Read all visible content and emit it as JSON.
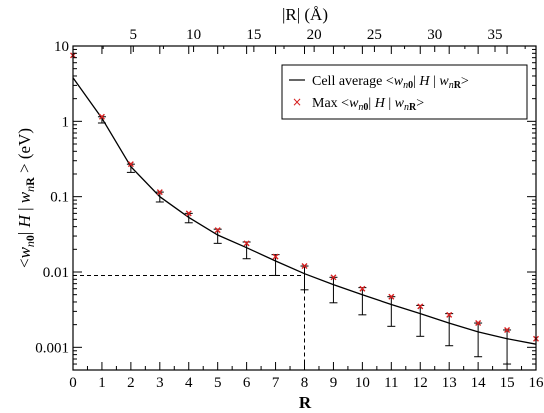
{
  "chart_data": {
    "type": "line",
    "title": "",
    "xlabel": "R",
    "top_xlabel": "|R| (Å)",
    "ylabel": "<w_n0| H |w_nR> (eV)",
    "ylabel_parts": {
      "lt": "<",
      "w1": "w",
      "s1a": "n",
      "s1b": "0",
      "bar1": "| ",
      "H": "H",
      "bar2": " | ",
      "w2": "w",
      "s2a": "n",
      "s2b": "R",
      "gt": " > ",
      "unit": "(eV)"
    },
    "y_scale": "log",
    "xlim": [
      0,
      16
    ],
    "ylim": [
      0.0005,
      10
    ],
    "top_xlim": [
      0,
      38.4
    ],
    "x_ticks": [
      "0",
      "1",
      "2",
      "3",
      "4",
      "5",
      "6",
      "7",
      "8",
      "9",
      "10",
      "11",
      "12",
      "13",
      "14",
      "15",
      "16"
    ],
    "top_x_ticks": [
      "5",
      "10",
      "15",
      "20",
      "25",
      "30",
      "35"
    ],
    "y_ticks": [
      "0.001",
      "0.01",
      "0.1",
      "1",
      "10"
    ],
    "legend_position": "top-right",
    "series": [
      {
        "name": "Cell average <w_n0| H |w_nR>",
        "legend": {
          "pre": "Cell average <",
          "w1": "w",
          "s1a": "n",
          "s1b": "0",
          "mid": "| ",
          "H": "H",
          "mid2": " | ",
          "w2": "w",
          "s2a": "n",
          "s2b": "R",
          "post": ">"
        },
        "style": "line",
        "color": "#000000",
        "x": [
          0,
          1,
          2,
          3,
          4,
          5,
          6,
          7,
          8,
          9,
          10,
          11,
          12,
          13,
          14,
          15,
          16
        ],
        "y": [
          3.8,
          1.1,
          0.25,
          0.1,
          0.053,
          0.031,
          0.021,
          0.014,
          0.0095,
          0.0068,
          0.005,
          0.0037,
          0.0028,
          0.0021,
          0.0016,
          0.0013,
          0.0011
        ],
        "err_low": [
          null,
          0.95,
          0.21,
          0.085,
          0.045,
          0.024,
          0.015,
          0.009,
          0.0058,
          0.0039,
          0.0027,
          0.0019,
          0.0014,
          0.00105,
          0.00075,
          0.0006,
          null
        ],
        "err_high": [
          null,
          1.15,
          0.27,
          0.115,
          0.06,
          0.037,
          0.025,
          0.017,
          0.012,
          0.0085,
          0.0062,
          0.0047,
          0.0036,
          0.0028,
          0.0021,
          0.0017,
          null
        ]
      },
      {
        "name": "Max <w_n0| H |w_nR>",
        "legend": {
          "pre": "Max  <",
          "w1": "w",
          "s1a": "n",
          "s1b": "0",
          "mid": "| ",
          "H": "H",
          "mid2": " | ",
          "w2": "w",
          "s2a": "n",
          "s2b": "R",
          "post": ">"
        },
        "style": "marker-x",
        "color": "#d62020",
        "x": [
          0,
          1,
          2,
          3,
          4,
          5,
          6,
          7,
          8,
          9,
          10,
          11,
          12,
          13,
          14,
          15,
          16
        ],
        "y": [
          7.5,
          1.15,
          0.27,
          0.115,
          0.06,
          0.036,
          0.024,
          0.016,
          0.012,
          0.0085,
          0.006,
          0.0047,
          0.0035,
          0.0027,
          0.0021,
          0.0017,
          0.0013
        ]
      }
    ],
    "annotations": [
      {
        "type": "dashed-guide",
        "x": 8,
        "y": 0.009
      }
    ]
  }
}
